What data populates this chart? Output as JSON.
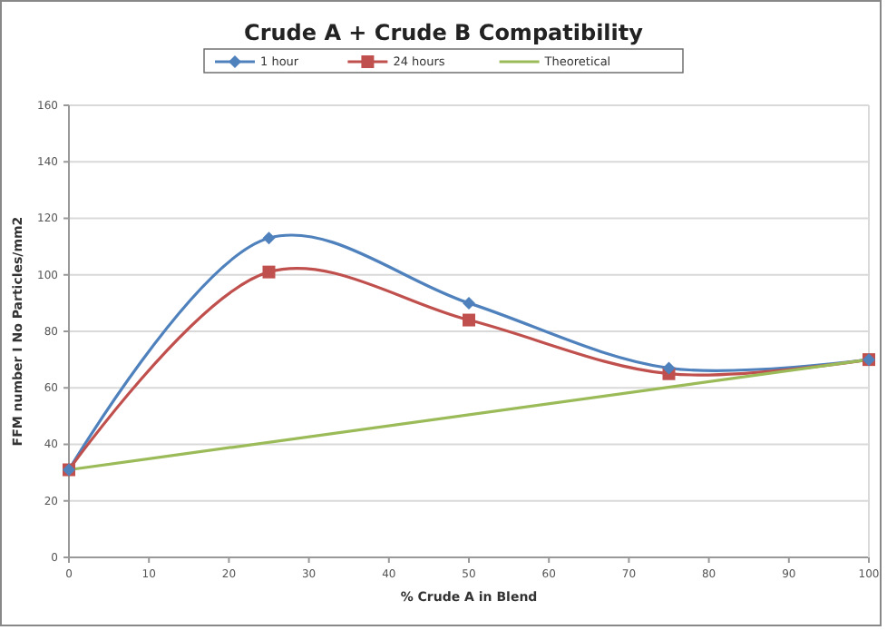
{
  "chart_data": {
    "type": "line",
    "title": "Crude A + Crude B Compatibility",
    "xlabel": "% Crude A in Blend",
    "ylabel": "FFM number I No Particles/mm2",
    "series": [
      {
        "name": "1 hour",
        "color": "#4f81bd",
        "marker": "diamond",
        "x": [
          0,
          25,
          50,
          75,
          100
        ],
        "values": [
          31,
          113,
          90,
          67,
          70
        ]
      },
      {
        "name": "24 hours",
        "color": "#c0504d",
        "marker": "square",
        "x": [
          0,
          25,
          50,
          75,
          100
        ],
        "values": [
          31,
          101,
          84,
          65,
          70
        ]
      },
      {
        "name": "Theoretical",
        "color": "#9bbb59",
        "marker": "none",
        "x": [
          0,
          100
        ],
        "values": [
          31,
          70
        ]
      }
    ],
    "xlim": [
      0,
      100
    ],
    "xticks": [
      0,
      10,
      20,
      30,
      40,
      50,
      60,
      70,
      80,
      90,
      100
    ],
    "ylim": [
      0,
      160
    ],
    "yticks": [
      0,
      20,
      40,
      60,
      80,
      100,
      120,
      140,
      160
    ],
    "grid": "y",
    "legend": "top"
  }
}
